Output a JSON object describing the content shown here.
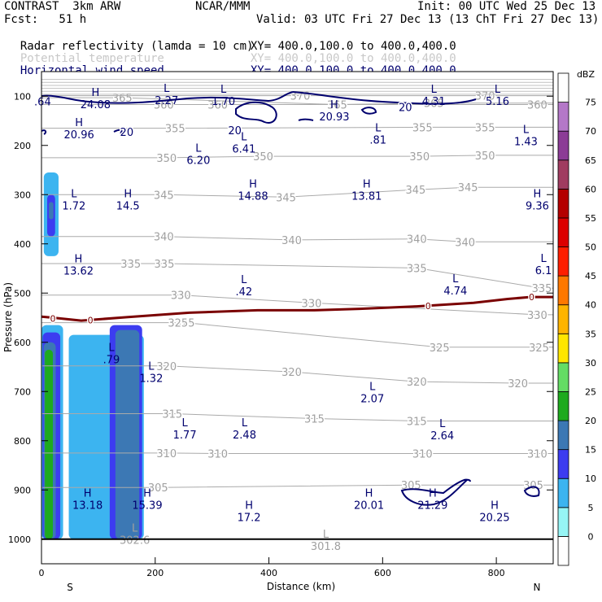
{
  "header": {
    "model": "CONTRAST  3km ARW",
    "center": "NCAR/MMM",
    "init": "Init: 00 UTC Wed 25 Dec 13",
    "fcst": "Fcst:   51 h",
    "valid": "Valid: 03 UTC Fri 27 Dec 13 (13 ChT Fri 27 Dec 13)"
  },
  "fields": [
    {
      "name": "Radar reflectivity (lamda = 10 cm)",
      "xy": "XY= 400.0,100.0 to 400.0,400.0",
      "color": "#000000"
    },
    {
      "name": "Potential temperature",
      "xy": "XY= 400.0,100.0 to 400.0,400.0",
      "color": "#c8c8c8"
    },
    {
      "name": "Horizontal wind speed",
      "xy": "XY= 400.0,100.0 to 400.0,400.0",
      "color": "#00006e"
    }
  ],
  "chart_data": {
    "type": "heatmap",
    "xlabel": "Distance (km)",
    "ylabel": "Pressure (hPa)",
    "xlim": [
      0,
      900
    ],
    "ylim": [
      1050,
      50
    ],
    "x_ticks": [
      0,
      200,
      400,
      600,
      800
    ],
    "y_ticks": [
      100,
      200,
      300,
      400,
      500,
      600,
      700,
      800,
      900,
      1000
    ],
    "x_end_labels": {
      "left": "S",
      "right": "N"
    },
    "colorbar": {
      "unit": "dBZ",
      "levels": [
        0,
        5,
        10,
        15,
        20,
        25,
        30,
        35,
        40,
        45,
        50,
        55,
        60,
        65,
        70,
        75
      ],
      "colors": [
        "#ffffff",
        "#96f5f5",
        "#3cb4f0",
        "#3c3cf0",
        "#3c78b4",
        "#1eaa1e",
        "#64dc64",
        "#ffe600",
        "#ffb400",
        "#ff7800",
        "#ff1e00",
        "#dc0000",
        "#b40000",
        "#a03c60",
        "#8c3c96",
        "#b478c8",
        "#ffffff"
      ]
    },
    "reflectivity_shapes": [
      {
        "dbz": 5,
        "x": [
          0,
          38
        ],
        "p": [
          1000,
          565
        ]
      },
      {
        "dbz": 10,
        "x": [
          2,
          33
        ],
        "p": [
          1000,
          580
        ]
      },
      {
        "dbz": 15,
        "x": [
          4,
          25
        ],
        "p": [
          1000,
          600
        ]
      },
      {
        "dbz": 20,
        "x": [
          6,
          20
        ],
        "p": [
          1000,
          615
        ]
      },
      {
        "dbz": 5,
        "x": [
          48,
          180
        ],
        "p": [
          1000,
          585
        ]
      },
      {
        "dbz": 10,
        "x": [
          120,
          177
        ],
        "p": [
          1000,
          565
        ]
      },
      {
        "dbz": 15,
        "x": [
          130,
          172
        ],
        "p": [
          1000,
          575
        ]
      },
      {
        "dbz": 5,
        "x": [
          4,
          30
        ],
        "p": [
          425,
          255
        ]
      },
      {
        "dbz": 10,
        "x": [
          10,
          24
        ],
        "p": [
          385,
          300
        ]
      },
      {
        "dbz": 15,
        "x": [
          13,
          21
        ],
        "p": [
          350,
          315
        ]
      }
    ],
    "theta_labels": [
      {
        "v": 365,
        "x": 142,
        "p": 103
      },
      {
        "v": 360,
        "x": 215,
        "p": 117
      },
      {
        "v": 360,
        "x": 310,
        "p": 117
      },
      {
        "v": 370,
        "x": 455,
        "p": 99
      },
      {
        "v": 365,
        "x": 520,
        "p": 117
      },
      {
        "v": 365,
        "x": 690,
        "p": 114
      },
      {
        "v": 370,
        "x": 780,
        "p": 99
      },
      {
        "v": 360,
        "x": 872,
        "p": 117
      },
      {
        "v": 355,
        "x": 235,
        "p": 165
      },
      {
        "v": 355,
        "x": 670,
        "p": 163
      },
      {
        "v": 355,
        "x": 780,
        "p": 163
      },
      {
        "v": 350,
        "x": 220,
        "p": 225
      },
      {
        "v": 350,
        "x": 390,
        "p": 222
      },
      {
        "v": 350,
        "x": 665,
        "p": 222
      },
      {
        "v": 350,
        "x": 780,
        "p": 220
      },
      {
        "v": 345,
        "x": 215,
        "p": 300
      },
      {
        "v": 345,
        "x": 430,
        "p": 305
      },
      {
        "v": 345,
        "x": 658,
        "p": 290
      },
      {
        "v": 345,
        "x": 750,
        "p": 285
      },
      {
        "v": 340,
        "x": 215,
        "p": 385
      },
      {
        "v": 340,
        "x": 440,
        "p": 392
      },
      {
        "v": 340,
        "x": 660,
        "p": 390
      },
      {
        "v": 340,
        "x": 745,
        "p": 396
      },
      {
        "v": 335,
        "x": 157,
        "p": 440
      },
      {
        "v": 335,
        "x": 216,
        "p": 440
      },
      {
        "v": 335,
        "x": 660,
        "p": 449
      },
      {
        "v": 335,
        "x": 880,
        "p": 490
      },
      {
        "v": 330,
        "x": 245,
        "p": 504
      },
      {
        "v": 330,
        "x": 475,
        "p": 520
      },
      {
        "v": 330,
        "x": 872,
        "p": 544
      },
      {
        "v": 325,
        "x": 252,
        "p": 560
      },
      {
        "v": 325,
        "x": 240,
        "p": 560
      },
      {
        "v": 325,
        "x": 700,
        "p": 610
      },
      {
        "v": 325,
        "x": 875,
        "p": 610
      },
      {
        "v": 320,
        "x": 220,
        "p": 648
      },
      {
        "v": 320,
        "x": 440,
        "p": 660
      },
      {
        "v": 320,
        "x": 660,
        "p": 680
      },
      {
        "v": 320,
        "x": 838,
        "p": 683
      },
      {
        "v": 315,
        "x": 230,
        "p": 745
      },
      {
        "v": 315,
        "x": 480,
        "p": 755
      },
      {
        "v": 315,
        "x": 660,
        "p": 760
      },
      {
        "v": 310,
        "x": 220,
        "p": 825
      },
      {
        "v": 310,
        "x": 310,
        "p": 826
      },
      {
        "v": 310,
        "x": 670,
        "p": 826
      },
      {
        "v": 310,
        "x": 872,
        "p": 826
      },
      {
        "v": 305,
        "x": 205,
        "p": 895
      },
      {
        "v": 305,
        "x": 650,
        "p": 890
      },
      {
        "v": 305,
        "x": 865,
        "p": 890
      }
    ],
    "extrema": [
      {
        "k": "",
        "v": "64",
        "x": 2,
        "p": 97,
        "dot": true
      },
      {
        "k": "H",
        "v": "24.08",
        "x": 95,
        "p": 103
      },
      {
        "k": "L",
        "v": "2.27",
        "x": 220,
        "p": 95
      },
      {
        "k": "L",
        "v": "1.70",
        "x": 320,
        "p": 96
      },
      {
        "k": "L",
        "v": "4.31",
        "x": 690,
        "p": 96
      },
      {
        "k": "L",
        "v": "5.16",
        "x": 802,
        "p": 96
      },
      {
        "k": "H",
        "v": "20.93",
        "x": 515,
        "p": 128
      },
      {
        "k": "H",
        "v": "20.96",
        "x": 66,
        "p": 164
      },
      {
        "k": "L",
        "v": ".81",
        "x": 592,
        "p": 175
      },
      {
        "k": "L",
        "v": "1.43",
        "x": 852,
        "p": 178
      },
      {
        "k": "L",
        "v": "6.41",
        "x": 356,
        "p": 193
      },
      {
        "k": "L",
        "v": "6.20",
        "x": 276,
        "p": 216
      },
      {
        "k": "H",
        "v": "14.88",
        "x": 372,
        "p": 289
      },
      {
        "k": "H",
        "v": "13.81",
        "x": 572,
        "p": 289
      },
      {
        "k": "L",
        "v": "1.72",
        "x": 57,
        "p": 309
      },
      {
        "k": "H",
        "v": "14.5",
        "x": 152,
        "p": 309
      },
      {
        "k": "H",
        "v": "9.36",
        "x": 872,
        "p": 309
      },
      {
        "k": "H",
        "v": "13.62",
        "x": 65,
        "p": 441
      },
      {
        "k": "L",
        "v": "6.1",
        "x": 883,
        "p": 440
      },
      {
        "k": "L",
        "v": ".42",
        "x": 356,
        "p": 483
      },
      {
        "k": "L",
        "v": "4.74",
        "x": 728,
        "p": 481
      },
      {
        "k": "L",
        "v": ".79",
        "x": 123,
        "p": 621
      },
      {
        "k": "L",
        "v": "1.32",
        "x": 193,
        "p": 659
      },
      {
        "k": "L",
        "v": "2.07",
        "x": 582,
        "p": 700
      },
      {
        "k": "L",
        "v": "1.77",
        "x": 252,
        "p": 774
      },
      {
        "k": "L",
        "v": "2.48",
        "x": 357,
        "p": 774
      },
      {
        "k": "L",
        "v": "2.64",
        "x": 705,
        "p": 776
      },
      {
        "k": "H",
        "v": "13.18",
        "x": 81,
        "p": 917
      },
      {
        "k": "H",
        "v": "15.39",
        "x": 186,
        "p": 917
      },
      {
        "k": "H",
        "v": "17.2",
        "x": 365,
        "p": 942
      },
      {
        "k": "H",
        "v": "20.01",
        "x": 576,
        "p": 917
      },
      {
        "k": "H",
        "v": "21.29",
        "x": 688,
        "p": 917
      },
      {
        "k": "H",
        "v": "20.25",
        "x": 797,
        "p": 942
      },
      {
        "k": "L",
        "v": "302.6",
        "x": 164,
        "p": 988
      },
      {
        "k": "L",
        "v": "301.8",
        "x": 500,
        "p": 1000
      }
    ],
    "wind_20_labels": [
      {
        "v": 20,
        "x": 150,
        "p": 172
      },
      {
        "k": 0,
        "v": 20,
        "x": 340,
        "p": 169
      },
      {
        "v": 20,
        "x": 640,
        "p": 122
      }
    ],
    "freezing_level": {
      "label": "0",
      "x": [
        0,
        20,
        70,
        150,
        260,
        380,
        480,
        560,
        660,
        760,
        820,
        860,
        900
      ],
      "p": [
        548,
        550,
        556,
        549,
        540,
        535,
        535,
        532,
        527,
        520,
        512,
        508,
        508
      ],
      "label_points": [
        {
          "x": 20,
          "p": 552
        },
        {
          "x": 86,
          "p": 555
        },
        {
          "x": 680,
          "p": 526
        },
        {
          "x": 862,
          "p": 508
        }
      ]
    }
  }
}
